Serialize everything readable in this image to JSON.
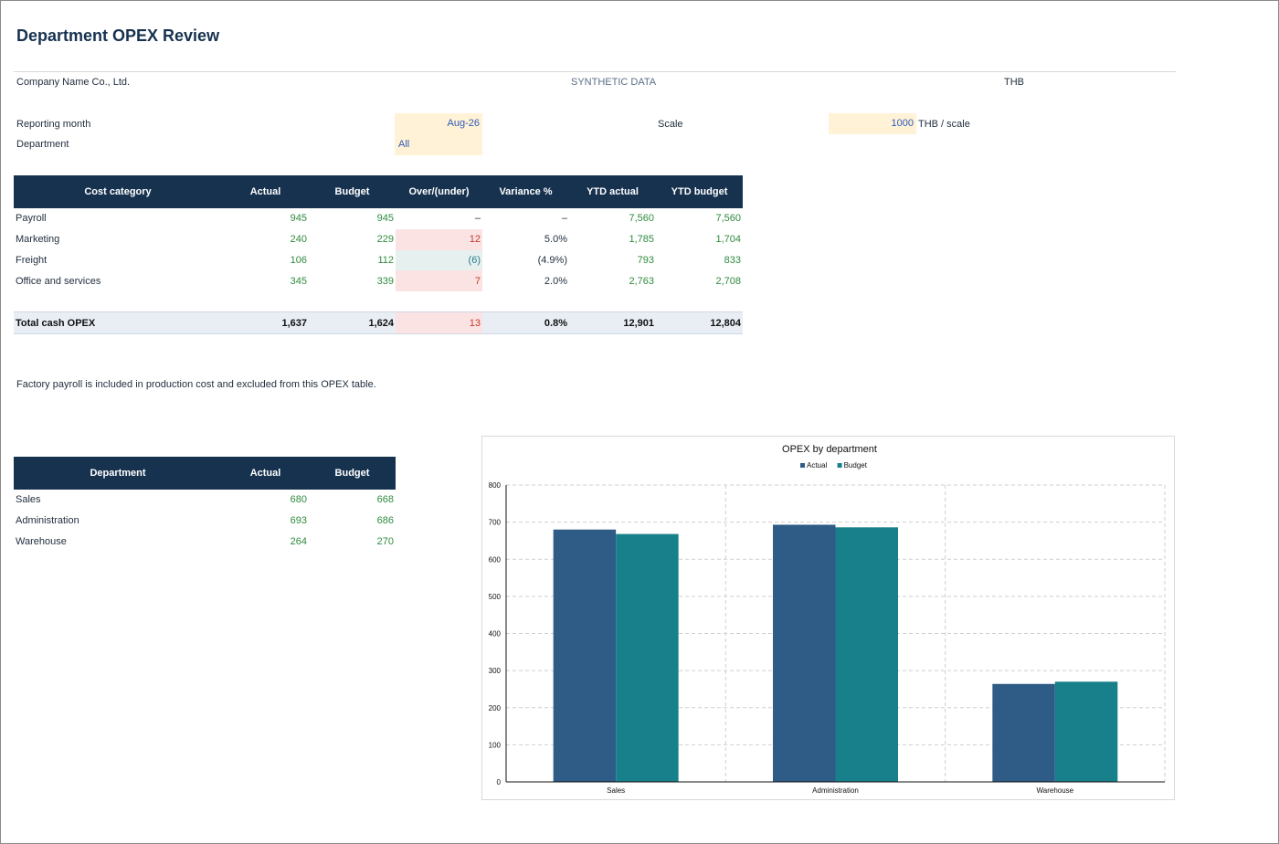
{
  "header": {
    "title": "Department OPEX Review",
    "company": "Company Name Co., Ltd.",
    "synthetic": "SYNTHETIC DATA",
    "currency": "THB"
  },
  "params": {
    "reporting_month_label": "Reporting month",
    "reporting_month_value": "Aug-26",
    "department_label": "Department",
    "department_value": "All",
    "scale_label": "Scale",
    "scale_value": "1000",
    "scale_unit": "THB / scale"
  },
  "opex_table": {
    "headers": [
      "Cost category",
      "Actual",
      "Budget",
      "Over/(under)",
      "Variance %",
      "YTD actual",
      "YTD budget"
    ],
    "rows": [
      {
        "category": "Payroll",
        "actual": "945",
        "budget": "945",
        "over_under": "–",
        "variance": "–",
        "ytd_actual": "7,560",
        "ytd_budget": "7,560",
        "status": "none"
      },
      {
        "category": "Marketing",
        "actual": "240",
        "budget": "229",
        "over_under": "12",
        "variance": "5.0%",
        "ytd_actual": "1,785",
        "ytd_budget": "1,704",
        "status": "over"
      },
      {
        "category": "Freight",
        "actual": "106",
        "budget": "112",
        "over_under": "(6)",
        "variance": "(4.9%)",
        "ytd_actual": "793",
        "ytd_budget": "833",
        "status": "under"
      },
      {
        "category": "Office and services",
        "actual": "345",
        "budget": "339",
        "over_under": "7",
        "variance": "2.0%",
        "ytd_actual": "2,763",
        "ytd_budget": "2,708",
        "status": "over"
      }
    ],
    "total": {
      "category": "Total cash OPEX",
      "actual": "1,637",
      "budget": "1,624",
      "over_under": "13",
      "variance": "0.8%",
      "ytd_actual": "12,901",
      "ytd_budget": "12,804"
    }
  },
  "note": "Factory payroll is included in production cost and excluded from this OPEX table.",
  "dept_table": {
    "headers": [
      "Department",
      "Actual",
      "Budget"
    ],
    "rows": [
      {
        "department": "Sales",
        "actual": "680",
        "budget": "668"
      },
      {
        "department": "Administration",
        "actual": "693",
        "budget": "686"
      },
      {
        "department": "Warehouse",
        "actual": "264",
        "budget": "270"
      }
    ]
  },
  "colors": {
    "header_navy": "#17324f",
    "actual_bar": "#2f5c86",
    "budget_bar": "#17808a",
    "over_fill": "#fbe3e4",
    "under_fill": "#e6f0ef",
    "input_fill": "#fff2d6",
    "value_green": "#2e8b3e"
  },
  "chart_data": {
    "type": "bar",
    "title": "OPEX by department",
    "categories": [
      "Sales",
      "Administration",
      "Warehouse"
    ],
    "series": [
      {
        "name": "Actual",
        "values": [
          680,
          693,
          264
        ],
        "color": "#2f5c86"
      },
      {
        "name": "Budget",
        "values": [
          668,
          686,
          270
        ],
        "color": "#17808a"
      }
    ],
    "ylim": [
      0,
      800
    ],
    "yticks": [
      0,
      100,
      200,
      300,
      400,
      500,
      600,
      700,
      800
    ],
    "grid": true,
    "legend": "top-center"
  }
}
